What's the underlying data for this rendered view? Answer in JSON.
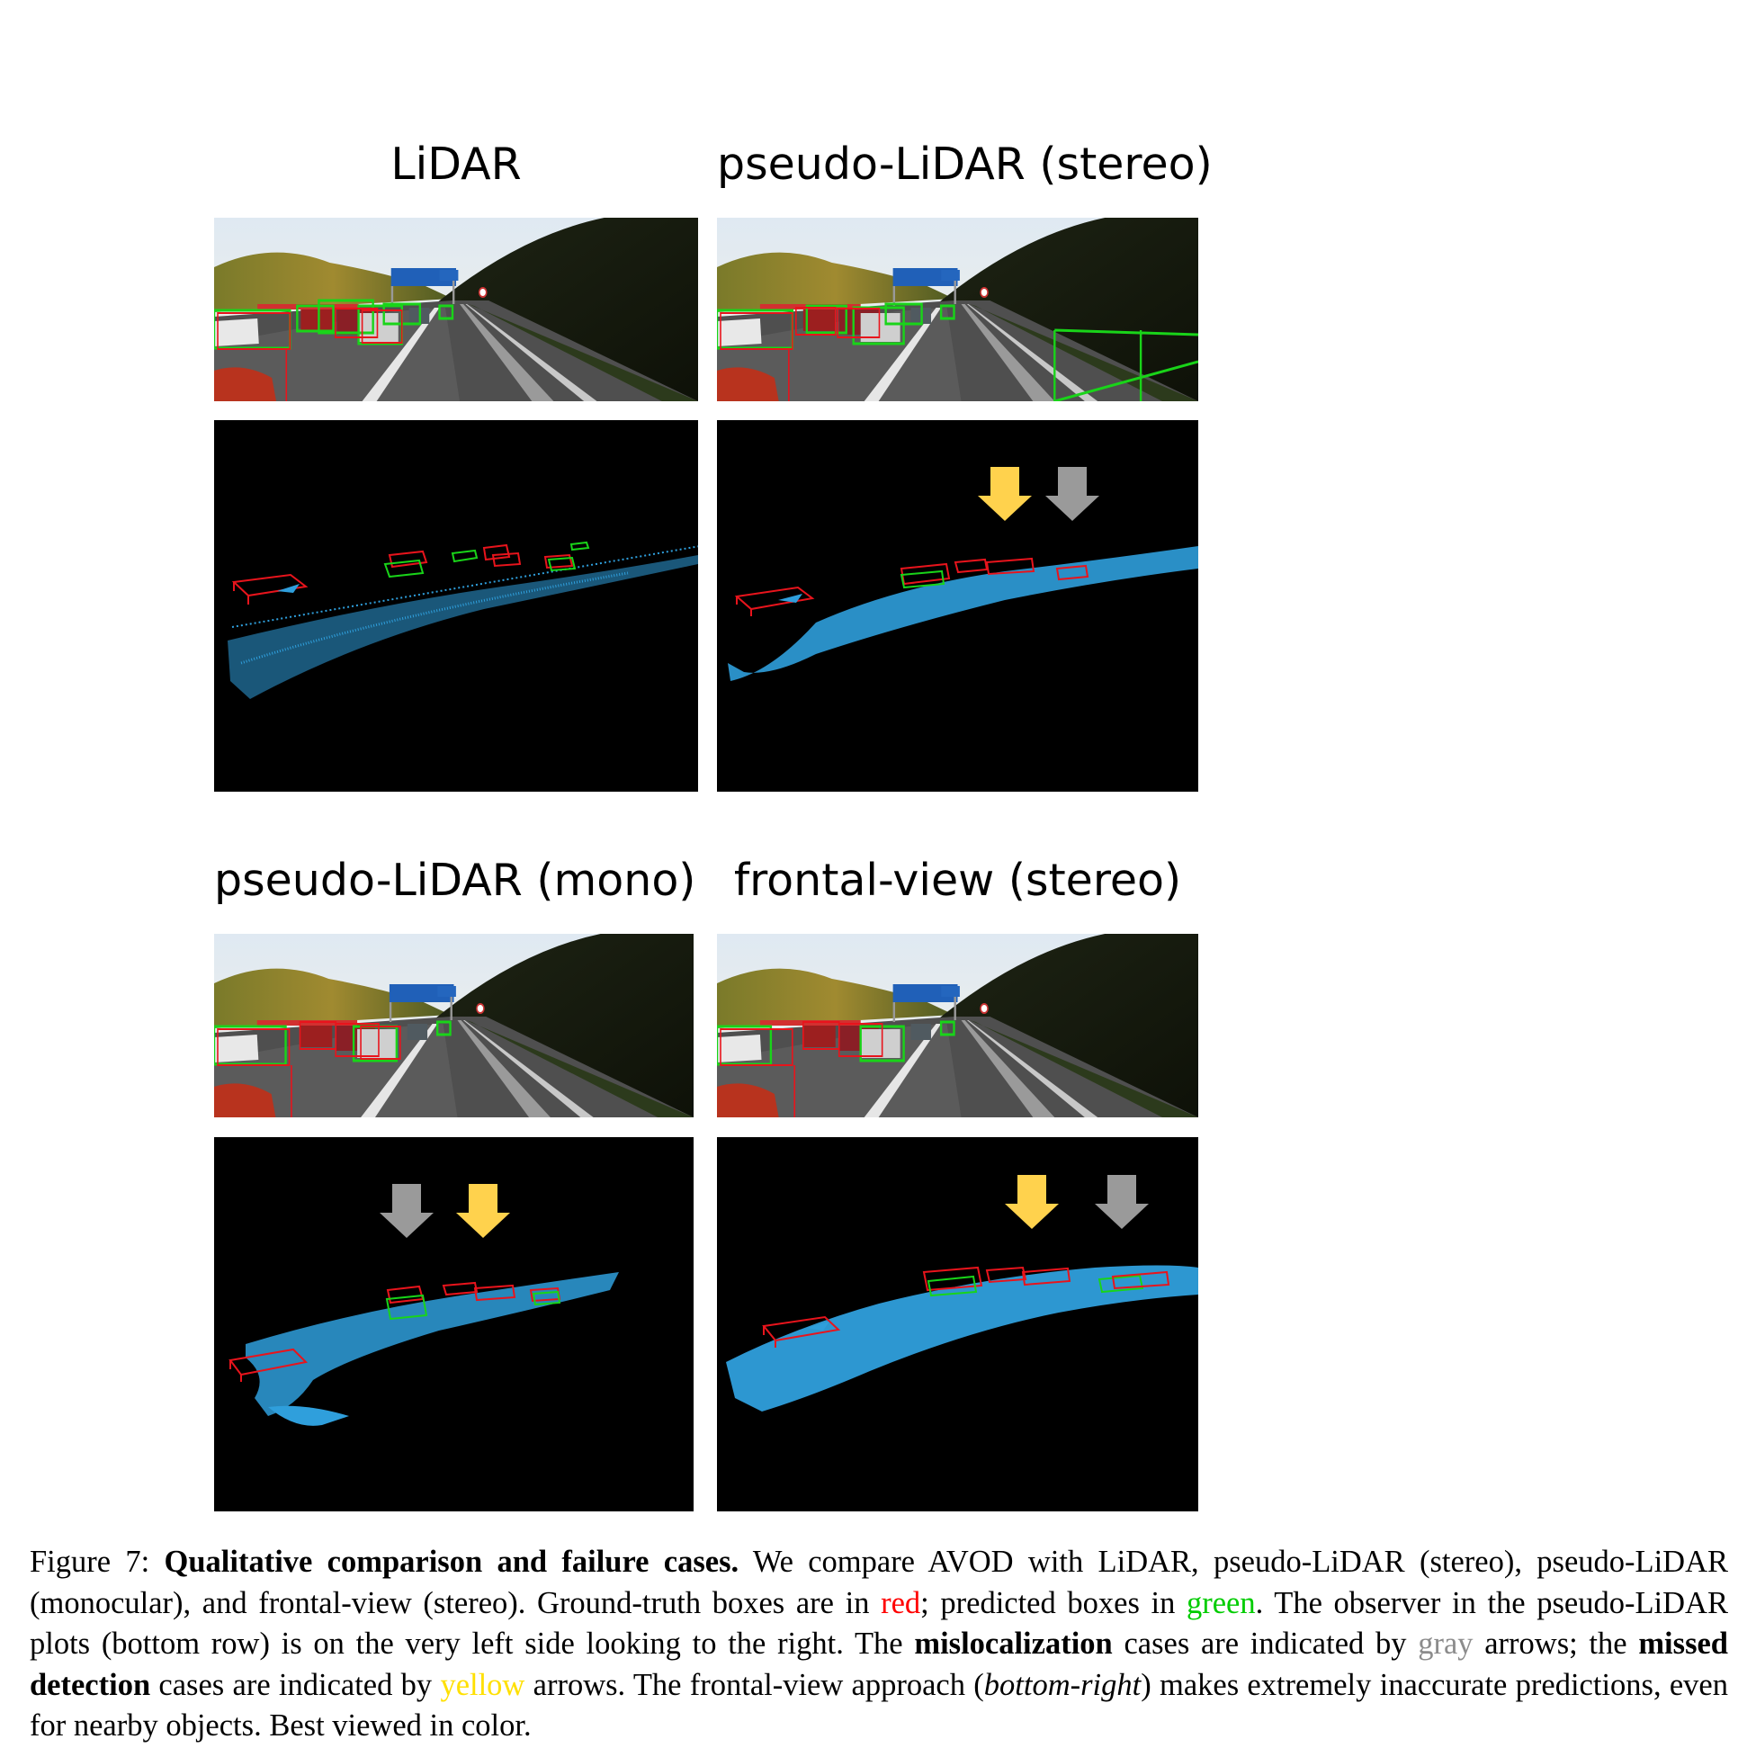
{
  "panels": [
    {
      "title": "LiDAR"
    },
    {
      "title": "pseudo-LiDAR (stereo)"
    },
    {
      "title": "pseudo-LiDAR (mono)"
    },
    {
      "title": "frontal-view (stereo)"
    }
  ],
  "colors": {
    "ground_truth": "#e8141c",
    "prediction": "#19d419",
    "point_cloud": "#2f9fdc",
    "arrow_gray": "#9a9a9a",
    "arrow_yellow": "#ffd24d",
    "caption_red": "#ff0000",
    "caption_green": "#00cc00",
    "caption_gray": "#8c8c8c",
    "caption_yellow": "#ffe000"
  },
  "caption": {
    "figure_label": "Figure 7:",
    "bold_title": "Qualitative comparison and failure cases.",
    "text1": " We compare AVOD with LiDAR, pseudo-LiDAR (stereo), pseudo-LiDAR (monocular), and frontal-view (stereo). Ground-truth boxes are in ",
    "red_word": "red",
    "text2": "; predicted boxes in ",
    "green_word": "green",
    "text3": ". The observer in the pseudo-LiDAR plots (bottom row) is on the very left side looking to the right. The ",
    "bold_mislocalization": "mislocalization",
    "text4": " cases are indicated by ",
    "gray_word": "gray",
    "text5": " arrows; the ",
    "bold_missed": "missed detection",
    "text6": " cases are indicated by ",
    "yellow_word": "yellow",
    "text7": " arrows. The frontal-view approach (",
    "italic_bottom_right": "bottom-right",
    "text8": ") makes extremely inaccurate predictions, even for nearby objects. Best viewed in color."
  }
}
